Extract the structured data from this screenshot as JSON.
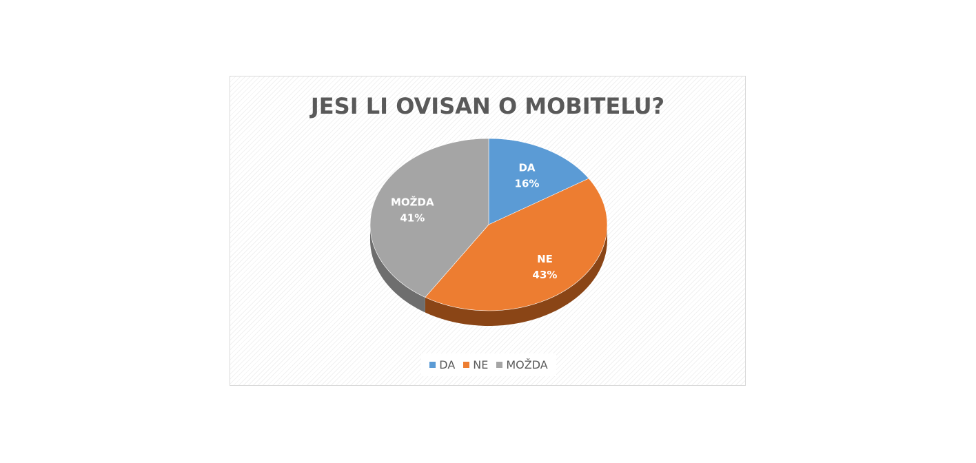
{
  "chart_data": {
    "type": "pie",
    "title": "JESI LI OVISAN O MOBITELU?",
    "categories": [
      "DA",
      "NE",
      "MOŽDA"
    ],
    "values": [
      16,
      43,
      41
    ],
    "value_labels": [
      "16%",
      "43%",
      "41%"
    ],
    "colors": [
      "#5b9bd5",
      "#ed7d31",
      "#a5a5a5"
    ],
    "side_colors": [
      "#3f77ab",
      "#8a4516",
      "#6e6e6e"
    ],
    "legend_position": "bottom",
    "style": "3d"
  }
}
